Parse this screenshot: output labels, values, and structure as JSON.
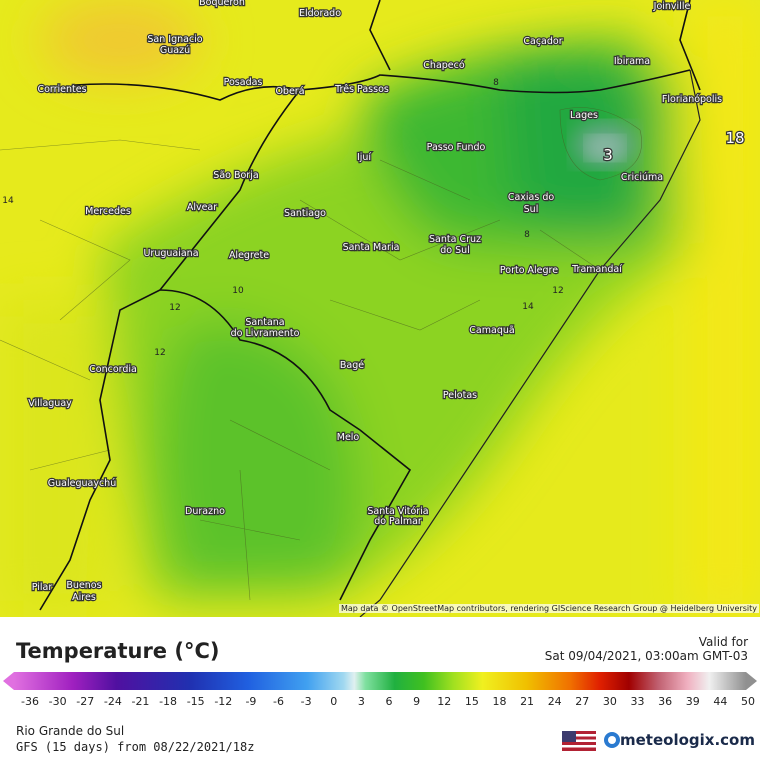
{
  "map": {
    "cities": [
      "Boqueron",
      "Eldorado",
      "Joinville",
      "San Ignacio",
      "Guazú",
      "Caçador",
      "Ibirama",
      "Chapecó",
      "Posadas",
      "Oberá",
      "Três Passos",
      "Corrientes",
      "Florianópolis",
      "Lages",
      "Passo Fundo",
      "Ijuí",
      "Criciúma",
      "São Borja",
      "Caxias do",
      "Sul",
      "Alvear",
      "Mercedes",
      "Santiago",
      "Santa Cruz",
      "do Sul",
      "Santa Maria",
      "Uruguaiana",
      "Alegrete",
      "Porto Alegre",
      "Tramandaí",
      "Santana",
      "do Livramento",
      "Camaquã",
      "Concordia",
      "Bagé",
      "Villaguay",
      "Pelotas",
      "Melo",
      "Gualeguaychú",
      "Durazno",
      "Santa Vitória",
      "do Palmar",
      "Buenos",
      "Aires",
      "Pilar"
    ],
    "contour_labels": [
      "8",
      "3",
      "18",
      "14",
      "10",
      "12",
      "12",
      "12",
      "14",
      "8"
    ],
    "attribution": "Map data © OpenStreetMap contributors, rendering GIScience Research Group @ Heidelberg University"
  },
  "legend": {
    "title": "Temperature (°C)",
    "ticks": [
      -36,
      -30,
      -27,
      -24,
      -21,
      -18,
      -15,
      -12,
      -9,
      -6,
      -3,
      0,
      3,
      6,
      9,
      12,
      15,
      18,
      21,
      24,
      27,
      30,
      33,
      36,
      39,
      44,
      50
    ]
  },
  "valid": {
    "label": "Valid for",
    "time": "Sat 09/04/2021, 03:00am GMT-03"
  },
  "footer": {
    "region": "Rio Grande do Sul",
    "model": "GFS (15 days) from 08/22/2021/18z",
    "brand": "meteologix.com"
  }
}
